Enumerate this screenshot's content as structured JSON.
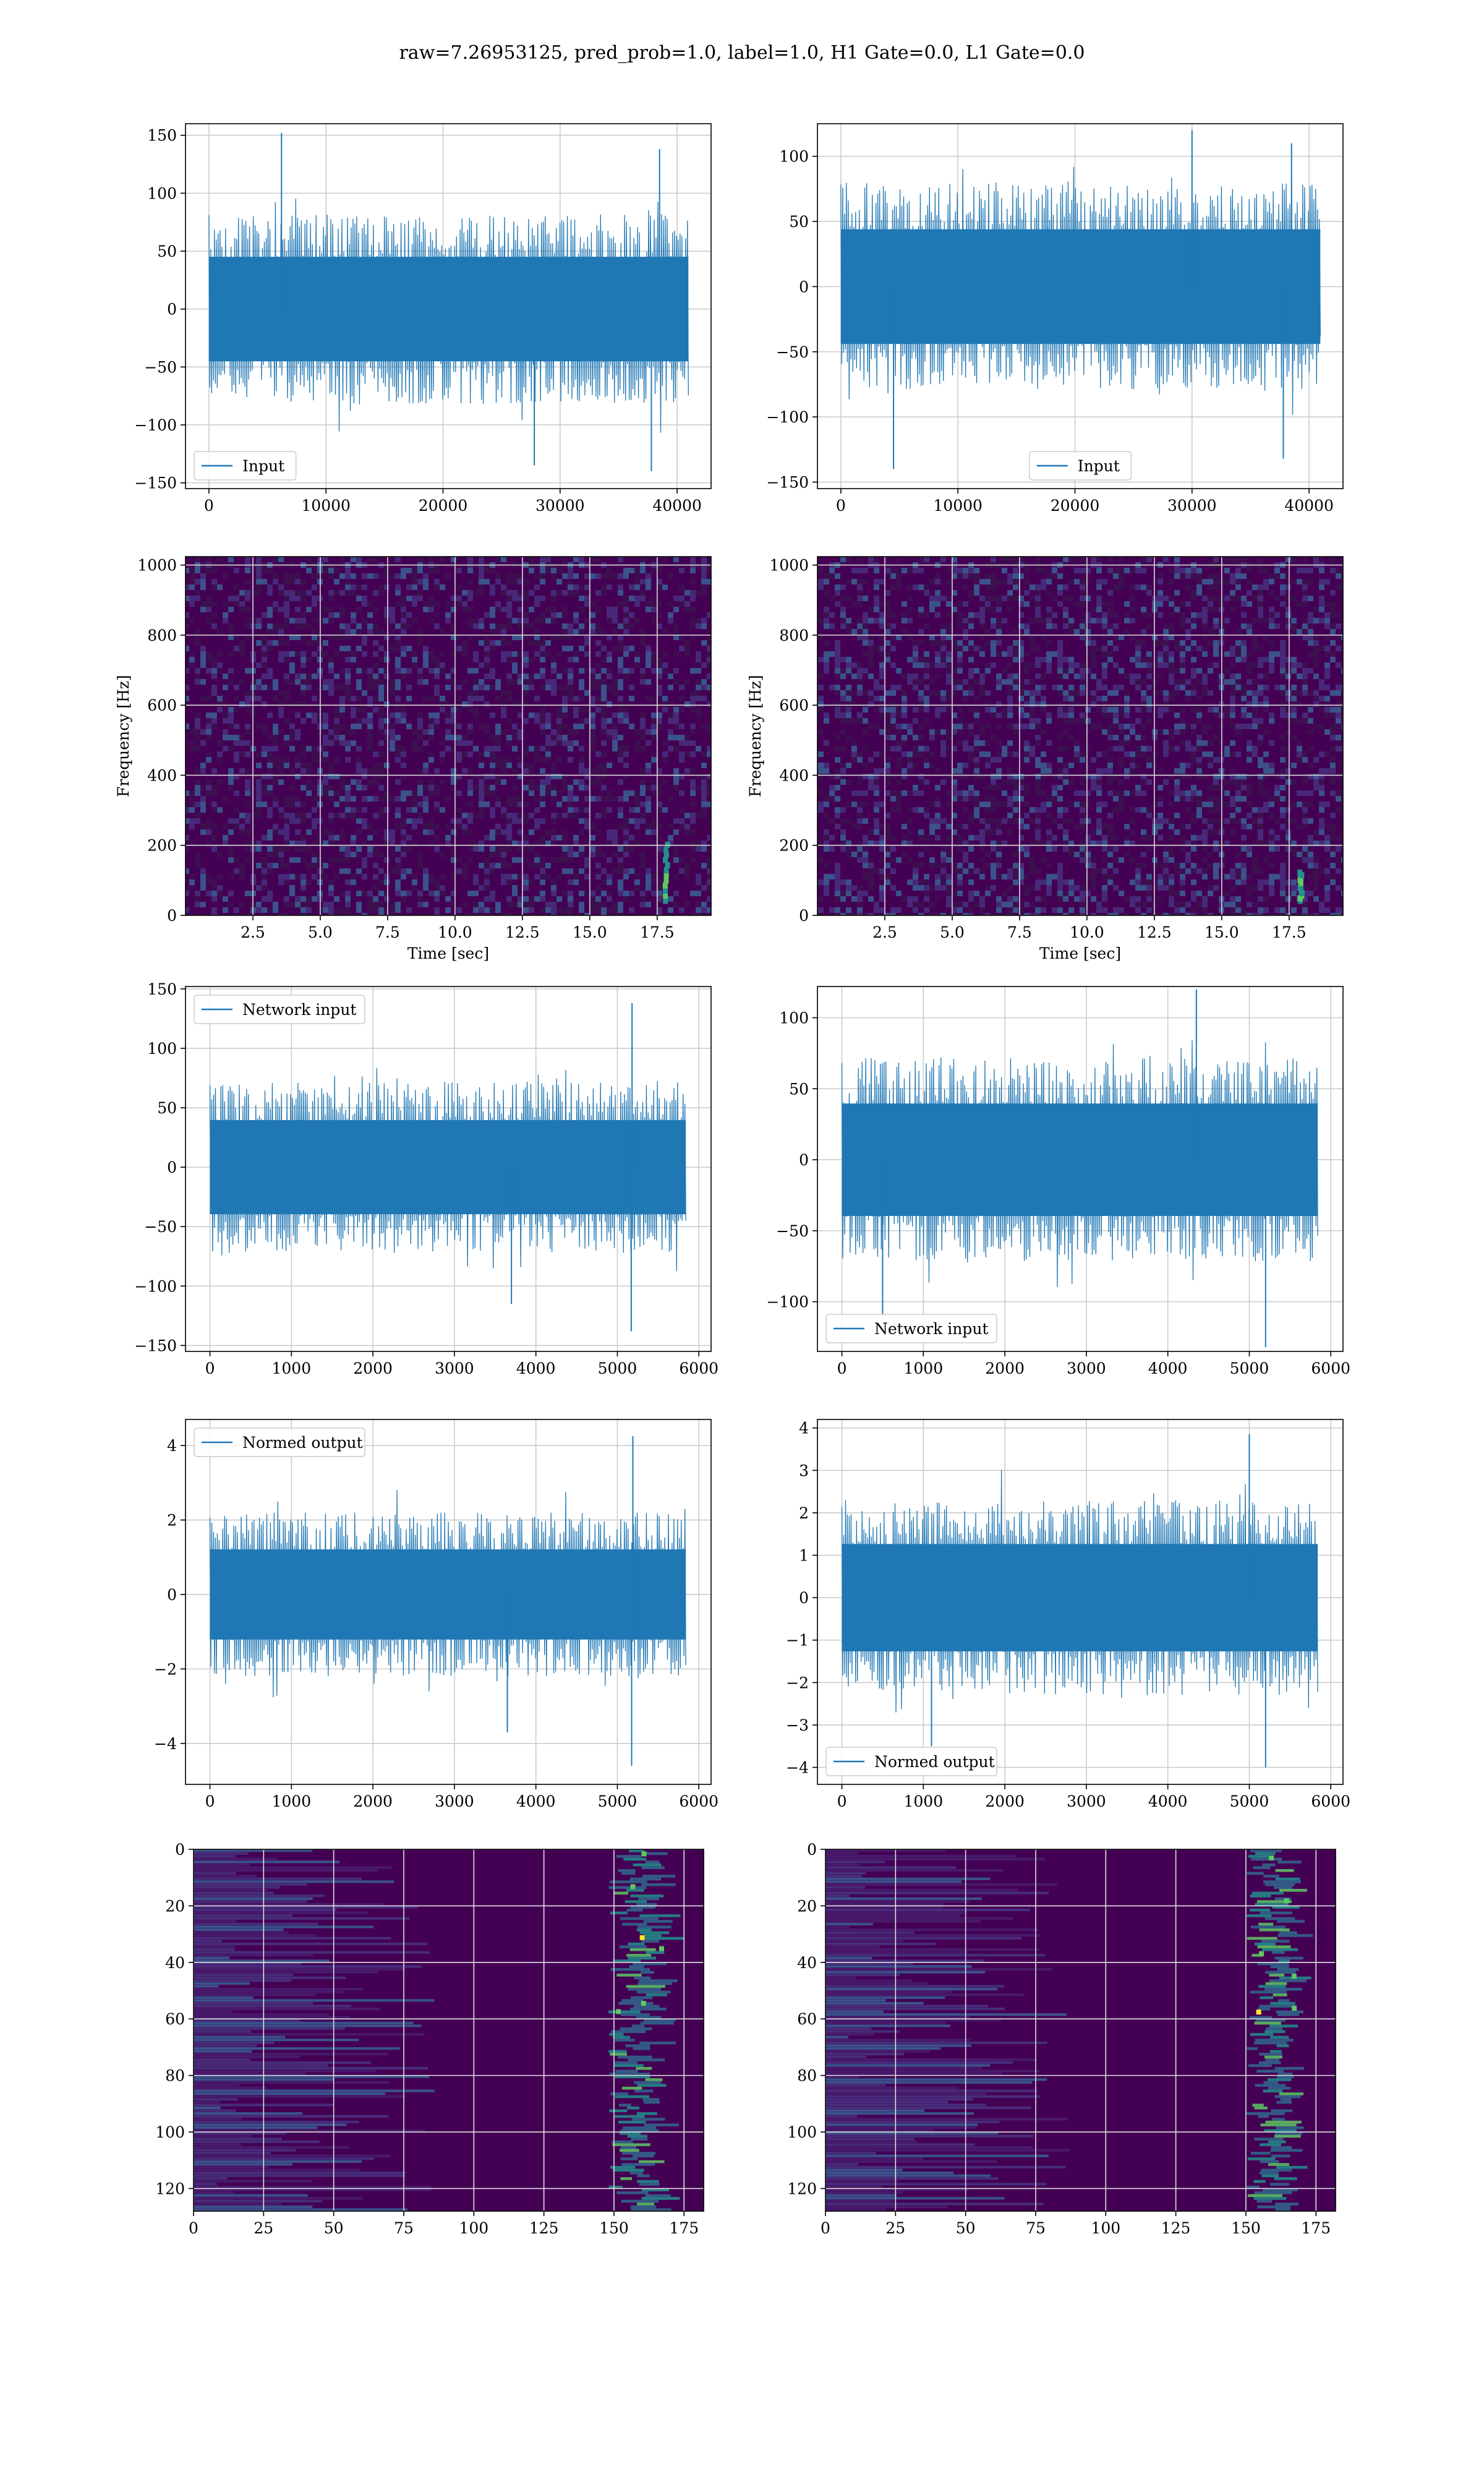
{
  "suptitle": "raw=7.26953125, pred_prob=1.0, label=1.0, H1 Gate=0.0, L1 Gate=0.0",
  "colors": {
    "line": "#1f77b4",
    "grid": "#cccccc",
    "viridis_low": "#440154",
    "viridis_mid": "#21918c",
    "viridis_high": "#fde725"
  },
  "chart_data": [
    {
      "id": "input-h1",
      "type": "line",
      "legend_label": "Input",
      "legend_loc": "lower left",
      "xlim": [
        -2000,
        42900
      ],
      "ylim": [
        -155,
        160
      ],
      "xticks": [
        0,
        10000,
        20000,
        30000,
        40000
      ],
      "yticks": [
        -150,
        -100,
        -50,
        0,
        50,
        100,
        150
      ],
      "x_range": [
        0,
        40960
      ],
      "n_points": 520,
      "envelope_abs": 82,
      "spikes": [
        [
          6200,
          152
        ],
        [
          27800,
          -135
        ],
        [
          37800,
          -140
        ],
        [
          38500,
          138
        ]
      ]
    },
    {
      "id": "input-l1",
      "type": "line",
      "legend_label": "Input",
      "legend_loc": "lower center",
      "xlim": [
        -2000,
        42900
      ],
      "ylim": [
        -155,
        125
      ],
      "xticks": [
        0,
        10000,
        20000,
        30000,
        40000
      ],
      "yticks": [
        -150,
        -100,
        -50,
        0,
        50,
        100
      ],
      "x_range": [
        0,
        40960
      ],
      "n_points": 520,
      "envelope_abs": 80,
      "spikes": [
        [
          4500,
          -140
        ],
        [
          30000,
          120
        ],
        [
          37800,
          -132
        ],
        [
          38500,
          110
        ]
      ]
    },
    {
      "id": "spec-h1",
      "type": "heatmap",
      "kind": "spectrogram",
      "xlabel": "Time [sec]",
      "ylabel": "Frequency [Hz]",
      "xlim": [
        0,
        19.5
      ],
      "ylim": [
        0,
        1024
      ],
      "xticks": [
        2.5,
        5.0,
        7.5,
        10.0,
        12.5,
        15.0,
        17.5
      ],
      "yticks": [
        0,
        200,
        400,
        600,
        800,
        1000
      ],
      "chirp": {
        "t": 17.8,
        "f_range": [
          40,
          200
        ]
      }
    },
    {
      "id": "spec-l1",
      "type": "heatmap",
      "kind": "spectrogram",
      "xlabel": "Time [sec]",
      "ylabel": "Frequency [Hz]",
      "xlim": [
        0,
        19.5
      ],
      "ylim": [
        0,
        1024
      ],
      "xticks": [
        2.5,
        5.0,
        7.5,
        10.0,
        12.5,
        15.0,
        17.5
      ],
      "yticks": [
        0,
        200,
        400,
        600,
        800,
        1000
      ],
      "chirp": {
        "t": 17.9,
        "f_range": [
          40,
          120
        ]
      }
    },
    {
      "id": "net-h1",
      "type": "line",
      "legend_label": "Network input",
      "legend_loc": "upper left",
      "xlim": [
        -300,
        6150
      ],
      "ylim": [
        -155,
        152
      ],
      "xticks": [
        0,
        1000,
        2000,
        3000,
        4000,
        5000,
        6000
      ],
      "yticks": [
        -150,
        -100,
        -50,
        0,
        50,
        100,
        150
      ],
      "x_range": [
        0,
        5840
      ],
      "n_points": 520,
      "envelope_abs": 72,
      "spikes": [
        [
          5180,
          138
        ],
        [
          5170,
          -138
        ],
        [
          3700,
          -115
        ]
      ]
    },
    {
      "id": "net-l1",
      "type": "line",
      "legend_label": "Network input",
      "legend_loc": "lower left",
      "xlim": [
        -300,
        6150
      ],
      "ylim": [
        -135,
        122
      ],
      "xticks": [
        0,
        1000,
        2000,
        3000,
        4000,
        5000,
        6000
      ],
      "yticks": [
        -100,
        -50,
        0,
        50,
        100
      ],
      "x_range": [
        0,
        5840
      ],
      "n_points": 520,
      "envelope_abs": 72,
      "spikes": [
        [
          4350,
          120
        ],
        [
          5200,
          -132
        ],
        [
          500,
          -110
        ]
      ]
    },
    {
      "id": "norm-h1",
      "type": "line",
      "legend_label": "Normed output",
      "legend_loc": "upper left",
      "xlim": [
        -300,
        6150
      ],
      "ylim": [
        -5.1,
        4.7
      ],
      "xticks": [
        0,
        1000,
        2000,
        3000,
        4000,
        5000,
        6000
      ],
      "yticks": [
        -4,
        -2,
        0,
        2,
        4
      ],
      "x_range": [
        0,
        5840
      ],
      "n_points": 520,
      "envelope_abs": 2.2,
      "spikes": [
        [
          5190,
          4.25
        ],
        [
          5175,
          -4.6
        ],
        [
          3650,
          -3.7
        ]
      ]
    },
    {
      "id": "norm-l1",
      "type": "line",
      "legend_label": "Normed output",
      "legend_loc": "lower left",
      "xlim": [
        -300,
        6150
      ],
      "ylim": [
        -4.4,
        4.2
      ],
      "xticks": [
        0,
        1000,
        2000,
        3000,
        4000,
        5000,
        6000
      ],
      "yticks": [
        -4,
        -3,
        -2,
        -1,
        0,
        1,
        2,
        3,
        4
      ],
      "x_range": [
        0,
        5840
      ],
      "n_points": 520,
      "envelope_abs": 2.3,
      "spikes": [
        [
          5000,
          3.85
        ],
        [
          5200,
          -4.0
        ],
        [
          1100,
          -3.5
        ]
      ]
    },
    {
      "id": "map-h1",
      "type": "heatmap",
      "kind": "feature-map",
      "xlim": [
        0,
        182
      ],
      "ylim": [
        128,
        0
      ],
      "xticks": [
        0,
        25,
        50,
        75,
        100,
        125,
        150,
        175
      ],
      "yticks": [
        0,
        20,
        40,
        60,
        80,
        100,
        120
      ],
      "active_band": [
        148,
        175
      ]
    },
    {
      "id": "map-l1",
      "type": "heatmap",
      "kind": "feature-map",
      "xlim": [
        0,
        182
      ],
      "ylim": [
        128,
        0
      ],
      "xticks": [
        0,
        25,
        50,
        75,
        100,
        125,
        150,
        175
      ],
      "yticks": [
        0,
        20,
        40,
        60,
        80,
        100,
        120
      ],
      "active_band": [
        150,
        175
      ]
    }
  ]
}
